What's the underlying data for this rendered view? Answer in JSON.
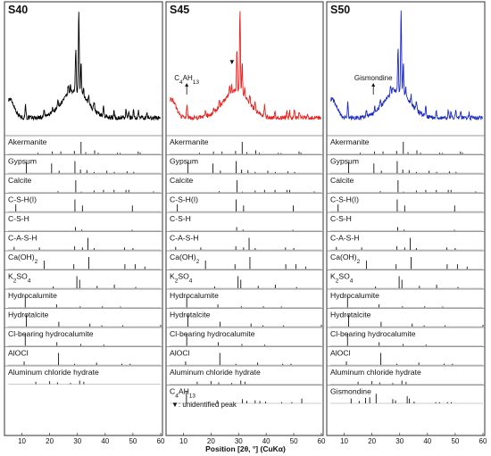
{
  "chart_data": {
    "type": "line",
    "xlabel": "Position [2θ, °] (CuKα)",
    "xlim": [
      5,
      60
    ],
    "xticks": [
      10,
      20,
      30,
      40,
      50,
      60
    ],
    "panels": [
      {
        "title": "S40",
        "color": "#000000",
        "references": [
          "Akermanite",
          "Gypsum",
          "Calcite",
          "C-S-H(I)",
          "C-S-H",
          "C-A-S-H",
          "Ca(OH)2",
          "K2SO4",
          "Hydrocalumite",
          "Hydrotalcite",
          "Cl-bearing hydrocalumite",
          "AlOCl",
          "Aluminum chloride hydrate"
        ],
        "annotations": []
      },
      {
        "title": "S45",
        "color": "#e8211e",
        "references": [
          "Akermanite",
          "Gypsum",
          "Calcite",
          "C-S-H(I)",
          "C-S-H",
          "C-A-S-H",
          "Ca(OH)2",
          "K2SO4",
          "Hydrocalumite",
          "Hydrotalcite",
          "Cl-bearing hydrocalumite",
          "AlOCl",
          "Aluminum chloride hydrate",
          "C4AH13"
        ],
        "annotations": [
          {
            "text": "C4AH13",
            "x": 11.2
          },
          {
            "text": "▼",
            "x": 27.6
          }
        ],
        "note": "▼: unidentified peak"
      },
      {
        "title": "S50",
        "color": "#1c2cc4",
        "references": [
          "Akermanite",
          "Gypsum",
          "Calcite",
          "C-S-H(I)",
          "C-S-H",
          "C-A-S-H",
          "Ca(OH)2",
          "K2SO4",
          "Hydrocalumite",
          "Hydrotalcite",
          "Cl-bearing hydrocalumite",
          "AlOCl",
          "Aluminum chloride hydrate",
          "Gismondine"
        ],
        "annotations": [
          {
            "text": "Gismondine",
            "x": 20.5
          }
        ]
      }
    ],
    "pattern_peaks": [
      [
        11.3,
        14
      ],
      [
        18.0,
        6
      ],
      [
        21.0,
        5
      ],
      [
        23.0,
        7
      ],
      [
        26.7,
        8
      ],
      [
        27.5,
        6
      ],
      [
        29.4,
        40
      ],
      [
        30.5,
        80
      ],
      [
        31.3,
        30
      ],
      [
        32.2,
        9
      ],
      [
        34.1,
        8
      ],
      [
        36.0,
        9
      ],
      [
        39.4,
        10
      ],
      [
        43.2,
        6
      ],
      [
        47.5,
        7
      ],
      [
        48.5,
        6
      ],
      [
        50.2,
        8
      ],
      [
        52.0,
        6
      ],
      [
        55.0,
        5
      ]
    ],
    "reference_sticks": {
      "Akermanite": [
        [
          15.8,
          0.1
        ],
        [
          20.9,
          0.2
        ],
        [
          24.0,
          0.2
        ],
        [
          28.9,
          0.25
        ],
        [
          31.3,
          1.0
        ],
        [
          33.0,
          0.15
        ],
        [
          36.2,
          0.3
        ],
        [
          37.5,
          0.1
        ],
        [
          44.4,
          0.1
        ],
        [
          45.4,
          0.08
        ],
        [
          51.9,
          0.2
        ],
        [
          52.6,
          0.12
        ]
      ],
      "Gypsum": [
        [
          11.6,
          0.9
        ],
        [
          20.7,
          0.8
        ],
        [
          23.4,
          0.2
        ],
        [
          29.1,
          1.0
        ],
        [
          31.1,
          0.3
        ],
        [
          33.4,
          0.25
        ],
        [
          36.0,
          0.1
        ],
        [
          40.6,
          0.2
        ],
        [
          43.3,
          0.1
        ],
        [
          47.9,
          0.15
        ],
        [
          50.3,
          0.1
        ]
      ],
      "Calcite": [
        [
          23.0,
          0.1
        ],
        [
          29.4,
          1.0
        ],
        [
          31.4,
          0.06
        ],
        [
          36.0,
          0.15
        ],
        [
          39.4,
          0.2
        ],
        [
          43.2,
          0.2
        ],
        [
          47.5,
          0.2
        ],
        [
          48.5,
          0.2
        ],
        [
          57.4,
          0.08
        ]
      ],
      "C-S-H(I)": [
        [
          7.8,
          0.6
        ],
        [
          29.1,
          1.0
        ],
        [
          31.8,
          0.5
        ],
        [
          49.8,
          0.5
        ]
      ],
      "C-S-H": [
        [
          29.3,
          0.3
        ],
        [
          31.6,
          0.1
        ],
        [
          49.7,
          0.08
        ]
      ],
      "C-A-S-H": [
        [
          7.2,
          0.25
        ],
        [
          16.3,
          0.2
        ],
        [
          29.0,
          0.3
        ],
        [
          31.8,
          0.2
        ],
        [
          33.8,
          1.0
        ],
        [
          36.0,
          0.15
        ],
        [
          47.0,
          0.2
        ],
        [
          50.0,
          0.15
        ]
      ],
      "Ca(OH)2": [
        [
          18.0,
          0.7
        ],
        [
          28.7,
          0.4
        ],
        [
          34.1,
          1.0
        ],
        [
          47.1,
          0.4
        ],
        [
          50.8,
          0.4
        ],
        [
          54.3,
          0.2
        ]
      ],
      "K2SO4": [
        [
          21.3,
          0.15
        ],
        [
          29.8,
          1.0
        ],
        [
          30.8,
          0.7
        ],
        [
          37.1,
          0.2
        ],
        [
          43.3,
          0.3
        ],
        [
          51.0,
          0.1
        ]
      ],
      "Hydrocalumite": [
        [
          11.2,
          1.0
        ],
        [
          22.5,
          0.25
        ],
        [
          31.0,
          0.1
        ],
        [
          39.0,
          0.1
        ],
        [
          45.5,
          0.08
        ]
      ],
      "Hydrotalcite": [
        [
          11.6,
          1.0
        ],
        [
          23.3,
          0.4
        ],
        [
          34.5,
          0.25
        ],
        [
          38.8,
          0.1
        ],
        [
          46.3,
          0.1
        ],
        [
          60.0,
          0.15
        ]
      ],
      "Cl-bearing hydrocalumite": [
        [
          11.2,
          1.0
        ],
        [
          22.6,
          0.3
        ],
        [
          31.2,
          0.15
        ],
        [
          39.5,
          0.1
        ]
      ],
      "AlOCl": [
        [
          10.8,
          0.3
        ],
        [
          23.2,
          1.0
        ],
        [
          29.0,
          0.1
        ],
        [
          36.9,
          0.2
        ],
        [
          46.0,
          0.1
        ],
        [
          49.0,
          0.1
        ]
      ],
      "Aluminum chloride hydrate": [
        [
          15.0,
          0.2
        ],
        [
          20.0,
          0.25
        ],
        [
          22.8,
          0.15
        ],
        [
          27.5,
          0.1
        ],
        [
          30.8,
          0.3
        ],
        [
          32.3,
          0.2
        ]
      ],
      "C4AH13": [
        [
          11.1,
          1.0
        ],
        [
          22.2,
          0.25
        ],
        [
          31.4,
          0.35
        ],
        [
          33.0,
          0.2
        ],
        [
          36.0,
          0.25
        ],
        [
          37.7,
          0.2
        ],
        [
          39.8,
          0.15
        ],
        [
          45.6,
          0.1
        ],
        [
          49.3,
          0.1
        ],
        [
          52.9,
          0.4
        ]
      ],
      "Gismondine": [
        [
          12.5,
          0.4
        ],
        [
          15.4,
          0.2
        ],
        [
          17.7,
          0.45
        ],
        [
          19.2,
          0.5
        ],
        [
          21.5,
          0.8
        ],
        [
          27.5,
          0.35
        ],
        [
          28.5,
          0.25
        ],
        [
          32.7,
          0.6
        ],
        [
          33.5,
          0.4
        ],
        [
          35.2,
          0.15
        ],
        [
          43.0,
          0.1
        ],
        [
          44.3,
          0.1
        ],
        [
          47.2,
          0.1
        ],
        [
          48.6,
          0.1
        ]
      ]
    }
  }
}
